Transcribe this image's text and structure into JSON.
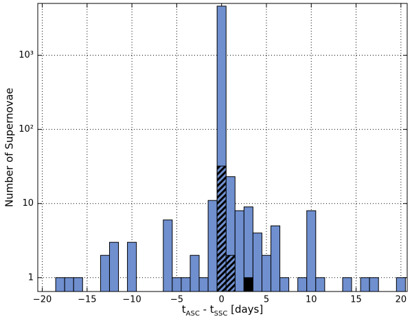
{
  "chart_data": {
    "type": "histogram",
    "ylabel": "Number of Supernovae",
    "xlabel": [
      {
        "text": "t",
        "sub": false
      },
      {
        "text": "ASC",
        "sub": true
      },
      {
        "text": " - t",
        "sub": false
      },
      {
        "text": "SSC",
        "sub": true
      },
      {
        "text": " [days]",
        "sub": false
      }
    ],
    "bins": [
      -20.5,
      -19.5,
      -18.5,
      -17.5,
      -16.5,
      -15.5,
      -14.5,
      -13.5,
      -12.5,
      -11.5,
      -10.5,
      -9.5,
      -8.5,
      -7.5,
      -6.5,
      -5.5,
      -4.5,
      -3.5,
      -2.5,
      -1.5,
      -0.5,
      0.5,
      1.5,
      2.5,
      3.5,
      4.5,
      5.5,
      6.5,
      7.5,
      8.5,
      9.5,
      10.5,
      11.5,
      12.5,
      13.5,
      14.5,
      15.5,
      16.5,
      17.5,
      18.5,
      19.5,
      20.5
    ],
    "series": [
      {
        "color": "#6f8fcf",
        "hatch": false,
        "values": [
          0,
          0,
          1,
          1,
          1,
          0,
          0,
          2,
          3,
          0,
          3,
          0,
          0,
          0,
          6,
          1,
          1,
          2,
          1,
          11,
          4600,
          23,
          8,
          9,
          4,
          2,
          5,
          1,
          0,
          1,
          8,
          1,
          0,
          0,
          1,
          0,
          1,
          1,
          0,
          0,
          1
        ]
      },
      {
        "color": "#000000",
        "hatch": true,
        "values": [
          0,
          0,
          0,
          0,
          0,
          0,
          0,
          0,
          0,
          0,
          0,
          0,
          0,
          0,
          0,
          0,
          0,
          0,
          0,
          0,
          32,
          2,
          0,
          0,
          0,
          0,
          0,
          0,
          0,
          0,
          0,
          0,
          0,
          0,
          0,
          0,
          0,
          0,
          0,
          0,
          0
        ]
      },
      {
        "color": "#000000",
        "hatch": false,
        "values": [
          0,
          0,
          0,
          0,
          0,
          0,
          0,
          0,
          0,
          0,
          0,
          0,
          0,
          0,
          0,
          0,
          0,
          0,
          0,
          0,
          0,
          0,
          0,
          1,
          0,
          0,
          0,
          0,
          0,
          0,
          0,
          0,
          0,
          0,
          0,
          0,
          0,
          0,
          0,
          0,
          0
        ]
      }
    ],
    "xlim": [
      -20.5,
      20.7
    ],
    "ylim": [
      0.65,
      5000
    ],
    "ylog": true,
    "xticks": [
      {
        "value": -20,
        "label": "−20"
      },
      {
        "value": -15,
        "label": "−15"
      },
      {
        "value": -10,
        "label": "−10"
      },
      {
        "value": -5,
        "label": "−5"
      },
      0,
      5,
      10,
      15,
      20
    ],
    "yticks": [
      1,
      10,
      {
        "value": 100,
        "label": "10²"
      },
      {
        "value": 1000,
        "label": "10³"
      }
    ],
    "grid": true
  }
}
